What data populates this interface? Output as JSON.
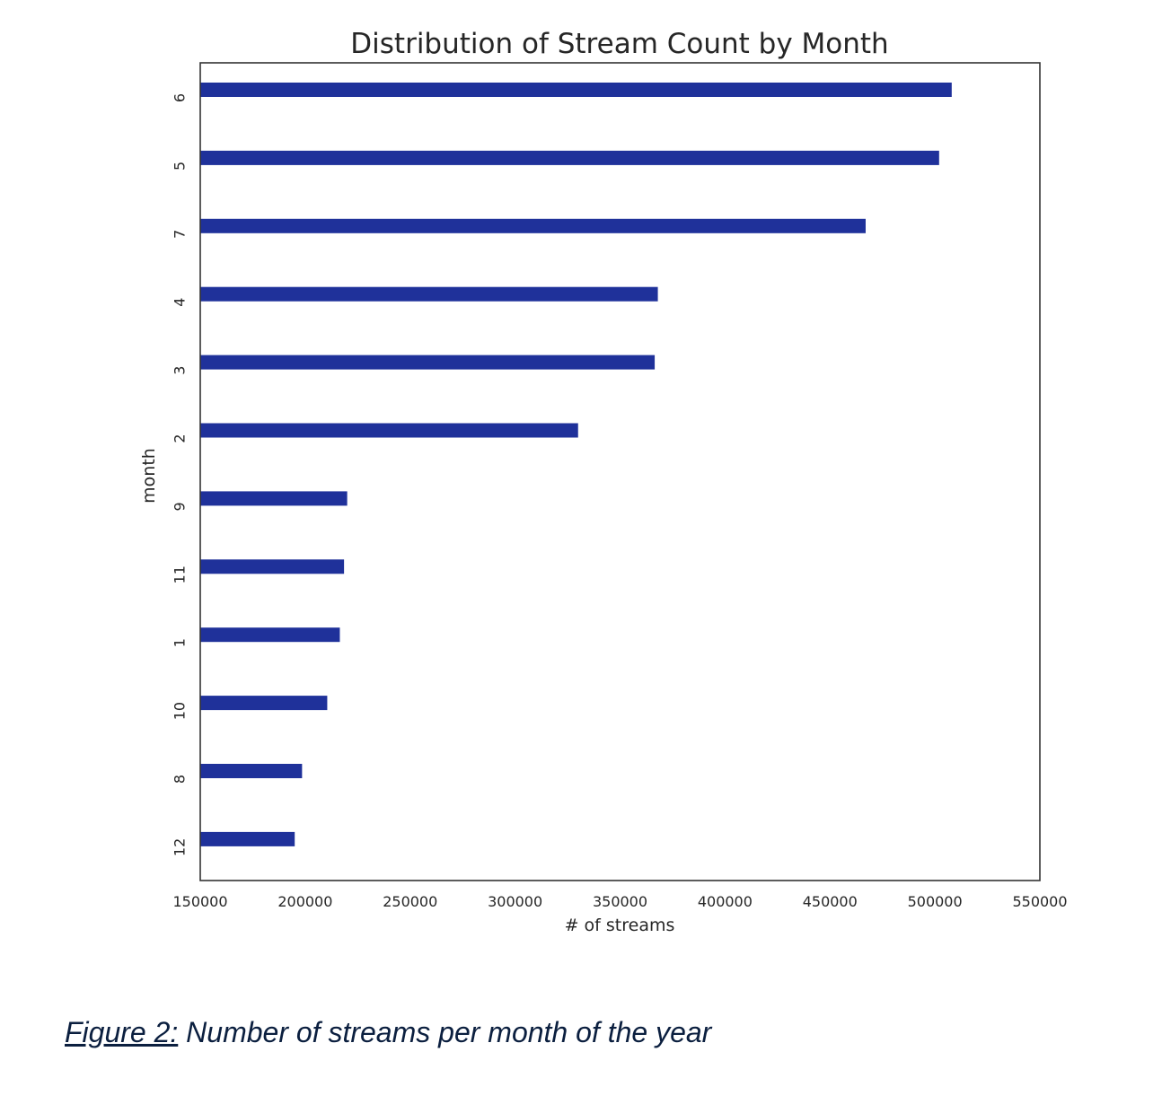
{
  "chart_data": {
    "type": "bar",
    "orientation": "horizontal",
    "title": "Distribution of Stream Count by Month",
    "xlabel": "# of streams",
    "ylabel": "month",
    "categories": [
      "6",
      "5",
      "7",
      "4",
      "3",
      "2",
      "9",
      "11",
      "1",
      "10",
      "8",
      "12"
    ],
    "values": [
      508000,
      502000,
      467000,
      368000,
      366500,
      330000,
      220000,
      218500,
      216500,
      210500,
      198500,
      195000
    ],
    "xlim": [
      150000,
      550000
    ],
    "xticks": [
      "150000",
      "200000",
      "250000",
      "300000",
      "350000",
      "400000",
      "450000",
      "500000",
      "550000"
    ],
    "grid": false,
    "bar_color": "#1f319a"
  },
  "caption": {
    "label": "Figure 2:",
    "text": " Number of streams per month of the year"
  }
}
